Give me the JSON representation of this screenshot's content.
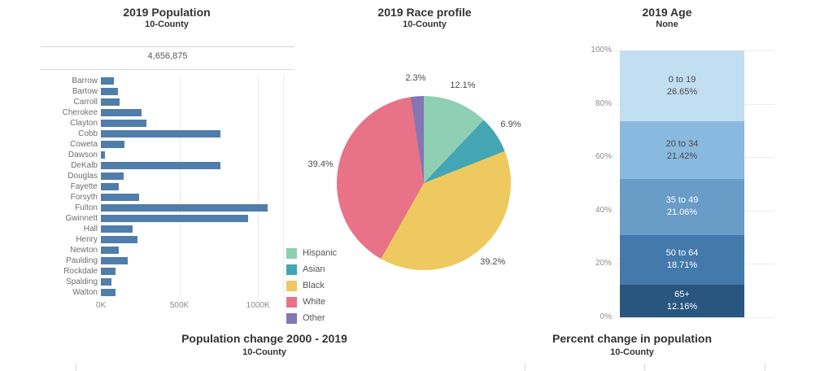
{
  "colors": {
    "bar_blue": "#507dab",
    "grid_light": "#ebebeb",
    "rule_gray": "#d6d6d6",
    "axis_text": "#8c8c8c",
    "category_text": "#6e6e6e",
    "title_text": "#333333",
    "total_text": "#555555"
  },
  "chart_data": [
    {
      "id": "population-by-county",
      "type": "bar",
      "orientation": "horizontal",
      "title": "2019 Population",
      "subtitle": "10-County",
      "total_display": "4,656,875",
      "categories": [
        "Barrow",
        "Bartow",
        "Carroll",
        "Cherokee",
        "Clayton",
        "Cobb",
        "Coweta",
        "Dawson",
        "DeKalb",
        "Douglas",
        "Fayette",
        "Forsyth",
        "Fulton",
        "Gwinnett",
        "Hall",
        "Henry",
        "Newton",
        "Paulding",
        "Rockdale",
        "Spalding",
        "Walton"
      ],
      "values_thousands": [
        83,
        108,
        120,
        259,
        292,
        760,
        149,
        26,
        759,
        146,
        114,
        244,
        1064,
        936,
        204,
        235,
        112,
        169,
        91,
        67,
        95
      ],
      "x_axis": {
        "ticks": [
          {
            "label": "0K",
            "value": 0
          },
          {
            "label": "500K",
            "value": 500
          },
          {
            "label": "1000K",
            "value": 1000
          }
        ],
        "max_thousands": 1160,
        "grid": true
      },
      "bar_color": "#507dab"
    },
    {
      "id": "race-profile",
      "type": "pie",
      "title": "2019 Race profile",
      "subtitle": "10-County",
      "start_angle_deg": 0,
      "direction": "clockwise",
      "slices": [
        {
          "label": "Hispanic",
          "value_pct": 12.1,
          "display": "12.1%",
          "color": "#8fcfb3"
        },
        {
          "label": "Asian",
          "value_pct": 6.9,
          "display": "6.9%",
          "color": "#44a5b4"
        },
        {
          "label": "Black",
          "value_pct": 39.2,
          "display": "39.2%",
          "color": "#eec95f"
        },
        {
          "label": "White",
          "value_pct": 39.4,
          "display": "39.4%",
          "color": "#e87287"
        },
        {
          "label": "Other",
          "value_pct": 2.3,
          "display": "2.3%",
          "color": "#8277b3"
        }
      ],
      "legend_position": "bottom-left"
    },
    {
      "id": "age-distribution",
      "type": "bar",
      "subtype": "stacked-100pct",
      "title": "2019 Age",
      "subtitle": "None",
      "ylim": [
        0,
        100
      ],
      "y_axis": {
        "ticks": [
          {
            "label": "100%",
            "value": 100
          },
          {
            "label": "80%",
            "value": 80
          },
          {
            "label": "60%",
            "value": 60
          },
          {
            "label": "40%",
            "value": 40
          },
          {
            "label": "20%",
            "value": 20
          },
          {
            "label": "0%",
            "value": 0
          }
        ],
        "grid": true
      },
      "segments_top_to_bottom": [
        {
          "label": "0 to 19",
          "value_pct": 26.65,
          "display": "26.65%",
          "color": "#c2def1",
          "text_color": "#4a4a4a"
        },
        {
          "label": "20 to 34",
          "value_pct": 21.42,
          "display": "21.42%",
          "color": "#89b9de",
          "text_color": "#4a4a4a"
        },
        {
          "label": "35 to 49",
          "value_pct": 21.06,
          "display": "21.06%",
          "color": "#699cc7",
          "text_color": "#ffffff"
        },
        {
          "label": "50 to 64",
          "value_pct": 18.71,
          "display": "18.71%",
          "color": "#4379ab",
          "text_color": "#ffffff"
        },
        {
          "label": "65+",
          "value_pct": 12.16,
          "display": "12.16%",
          "color": "#29567e",
          "text_color": "#ffffff"
        }
      ]
    }
  ],
  "bottom_titles": {
    "left": {
      "title": "Population change 2000 - 2019",
      "subtitle": "10-County"
    },
    "right": {
      "title": "Percent change in population",
      "subtitle": "10-County"
    }
  }
}
